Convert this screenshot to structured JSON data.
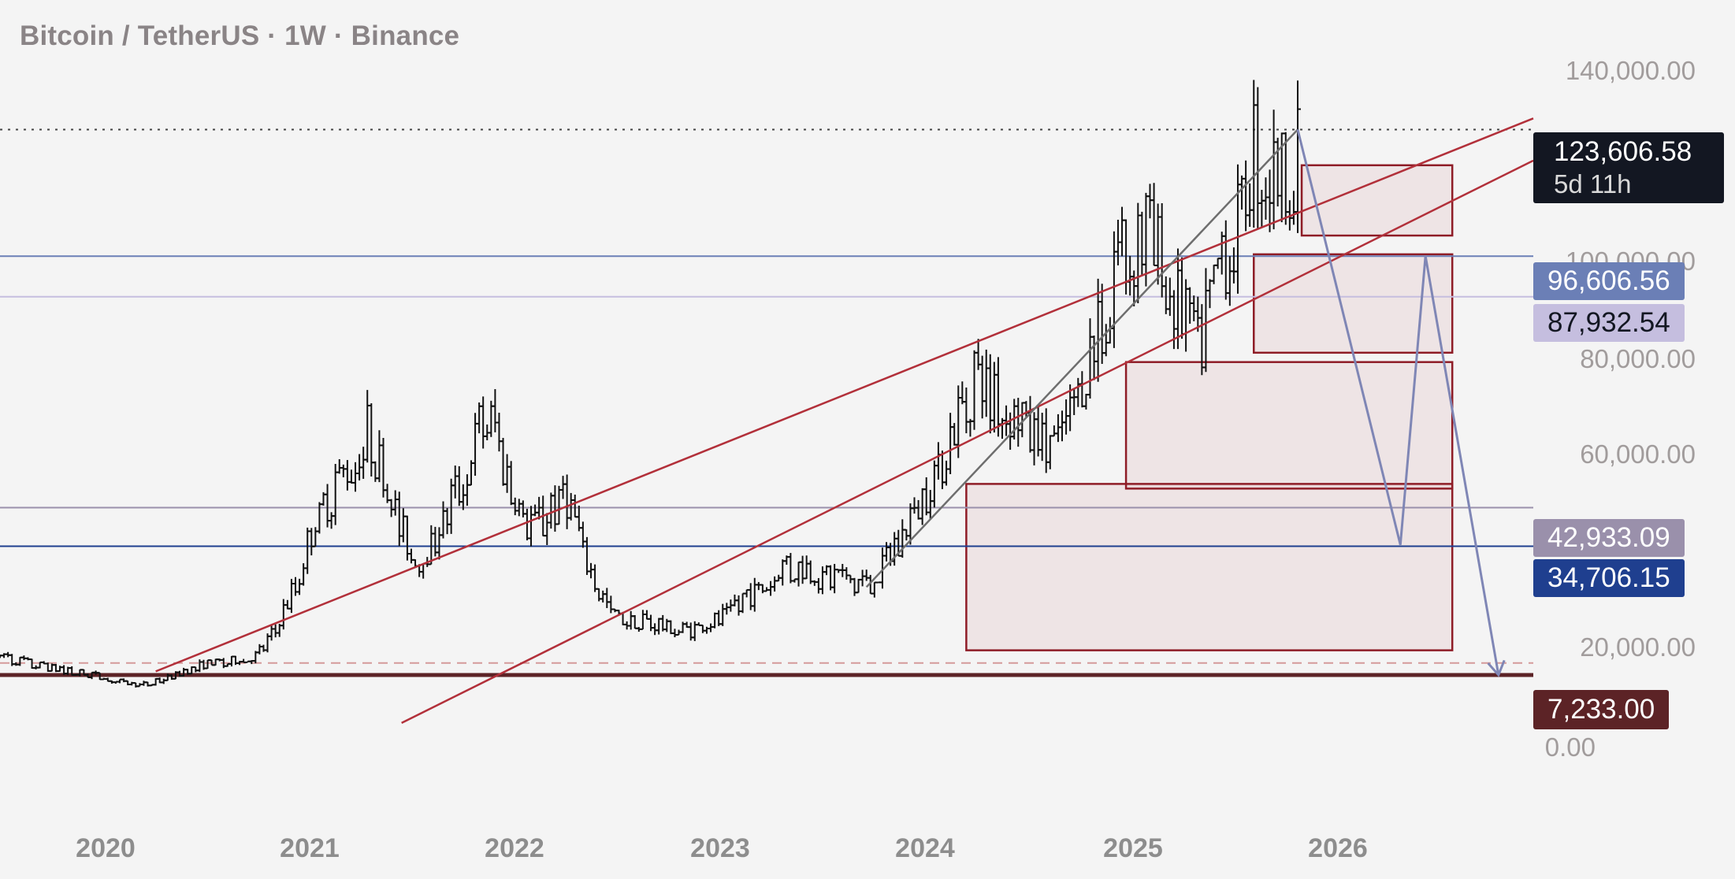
{
  "header": {
    "title": "Bitcoin / TetherUS · 1W · Binance"
  },
  "price_scale": {
    "ticks": [
      {
        "value": 140000,
        "label": "140,000.00"
      },
      {
        "value": 100000,
        "label": "100,000.00"
      },
      {
        "value": 80000,
        "label": "80,000.00"
      },
      {
        "value": 60000,
        "label": "60,000.00"
      },
      {
        "value": 20000,
        "label": "20,000.00"
      },
      {
        "value": 0,
        "label": "0.00"
      }
    ]
  },
  "time_scale": {
    "ticks": [
      {
        "value": "2020-01-01",
        "label": "2020"
      },
      {
        "value": "2021-01-01",
        "label": "2021"
      },
      {
        "value": "2022-01-01",
        "label": "2022"
      },
      {
        "value": "2023-01-01",
        "label": "2023"
      },
      {
        "value": "2024-01-01",
        "label": "2024"
      },
      {
        "value": "2025-01-01",
        "label": "2025"
      },
      {
        "value": "2026-01-01",
        "label": "2026"
      }
    ]
  },
  "last_price": {
    "label": "123,606.58",
    "countdown": "5d 11h",
    "value": 123606.58
  },
  "price_badges": [
    {
      "label": "96,606.56",
      "value": 96606.56,
      "color": "#6b7fb6",
      "text_color": "#ffffff"
    },
    {
      "label": "87,932.54",
      "value": 87932.54,
      "color": "#c5bedf",
      "text_color": "#131722"
    },
    {
      "label": "42,933.09",
      "value": 42933.09,
      "color": "#9a90ab",
      "text_color": "#ffffff"
    },
    {
      "label": "34,706.15",
      "value": 34706.15,
      "color": "#1f3f8f",
      "text_color": "#ffffff"
    },
    {
      "label": "7,233.00",
      "value": 7233,
      "color": "#5c2326",
      "text_color": "#ffffff"
    }
  ],
  "chart_data": {
    "type": "candlestick",
    "symbol": "Bitcoin / TetherUS",
    "interval": "1W",
    "exchange": "Binance",
    "ylim": [
      -15000,
      150000
    ],
    "xlim": [
      "2019-07-12",
      "2026-11-20"
    ],
    "grid": false,
    "weekly_ohlc_anchors": [
      {
        "date": "2019-07-12",
        "close": 11000
      },
      {
        "date": "2019-12-20",
        "close": 7300
      },
      {
        "date": "2020-03-13",
        "close": 5000
      },
      {
        "date": "2020-07-01",
        "close": 9500
      },
      {
        "date": "2020-10-01",
        "close": 11000
      },
      {
        "date": "2021-01-08",
        "close": 38000
      },
      {
        "date": "2021-04-16",
        "close": 60000
      },
      {
        "date": "2021-07-16",
        "close": 31000
      },
      {
        "date": "2021-11-10",
        "close": 64000
      },
      {
        "date": "2022-01-21",
        "close": 38000
      },
      {
        "date": "2022-03-30",
        "close": 45000
      },
      {
        "date": "2022-06-17",
        "close": 20000
      },
      {
        "date": "2022-11-11",
        "close": 16500
      },
      {
        "date": "2023-04-14",
        "close": 30000
      },
      {
        "date": "2023-09-08",
        "close": 26000
      },
      {
        "date": "2023-12-08",
        "close": 43000
      },
      {
        "date": "2024-03-15",
        "close": 70000
      },
      {
        "date": "2024-08-09",
        "close": 55000
      },
      {
        "date": "2024-11-15",
        "close": 93000
      },
      {
        "date": "2025-01-17",
        "close": 104000
      },
      {
        "date": "2025-04-11",
        "close": 77000
      },
      {
        "date": "2025-07-18",
        "close": 119000
      },
      {
        "date": "2025-09-26",
        "close": 112000
      },
      {
        "date": "2025-10-03",
        "close": 123606.58
      }
    ],
    "horizontal_levels": [
      {
        "value": 96606.56,
        "color": "#6b7fb6"
      },
      {
        "value": 87932.54,
        "color": "#c5bedf"
      },
      {
        "value": 42933.09,
        "color": "#9a90ab"
      },
      {
        "value": 34706.15,
        "color": "#1f3f8f"
      },
      {
        "value": 7233,
        "color": "#5c2326",
        "style": "solid-thick"
      },
      {
        "value": 9800,
        "color": "#d49a9a",
        "style": "dashed"
      },
      {
        "value": 123606.58,
        "color": "#444444",
        "style": "dotted"
      }
    ],
    "zones": [
      {
        "x0": "2025-10-10",
        "x1": "2026-07-01",
        "y0": 116000,
        "y1": 101000
      },
      {
        "x0": "2025-07-18",
        "x1": "2026-07-01",
        "y0": 97000,
        "y1": 76000
      },
      {
        "x0": "2024-12-06",
        "x1": "2026-07-01",
        "y0": 74000,
        "y1": 47000
      },
      {
        "x0": "2024-03-01",
        "x1": "2026-07-01",
        "y0": 48000,
        "y1": 12500
      }
    ],
    "trendlines": [
      {
        "from": {
          "date": "2020-04-10",
          "value": 8000
        },
        "to": {
          "date": "2026-11-20",
          "value": 126000
        },
        "color": "#b2303a"
      },
      {
        "from": {
          "date": "2021-06-15",
          "value": -3000
        },
        "to": {
          "date": "2026-11-20",
          "value": 117000
        },
        "color": "#b2303a"
      },
      {
        "from": {
          "date": "2023-09-08",
          "value": 26000
        },
        "to": {
          "date": "2025-10-03",
          "value": 123606.58
        },
        "color": "#6e6e6e"
      }
    ],
    "projection_path": {
      "color": "#7f86b5",
      "points": [
        {
          "date": "2025-10-03",
          "value": 123606.58
        },
        {
          "date": "2026-04-01",
          "value": 35000
        },
        {
          "date": "2026-05-15",
          "value": 96606.56
        },
        {
          "date": "2026-09-20",
          "value": 7233
        }
      ]
    }
  }
}
